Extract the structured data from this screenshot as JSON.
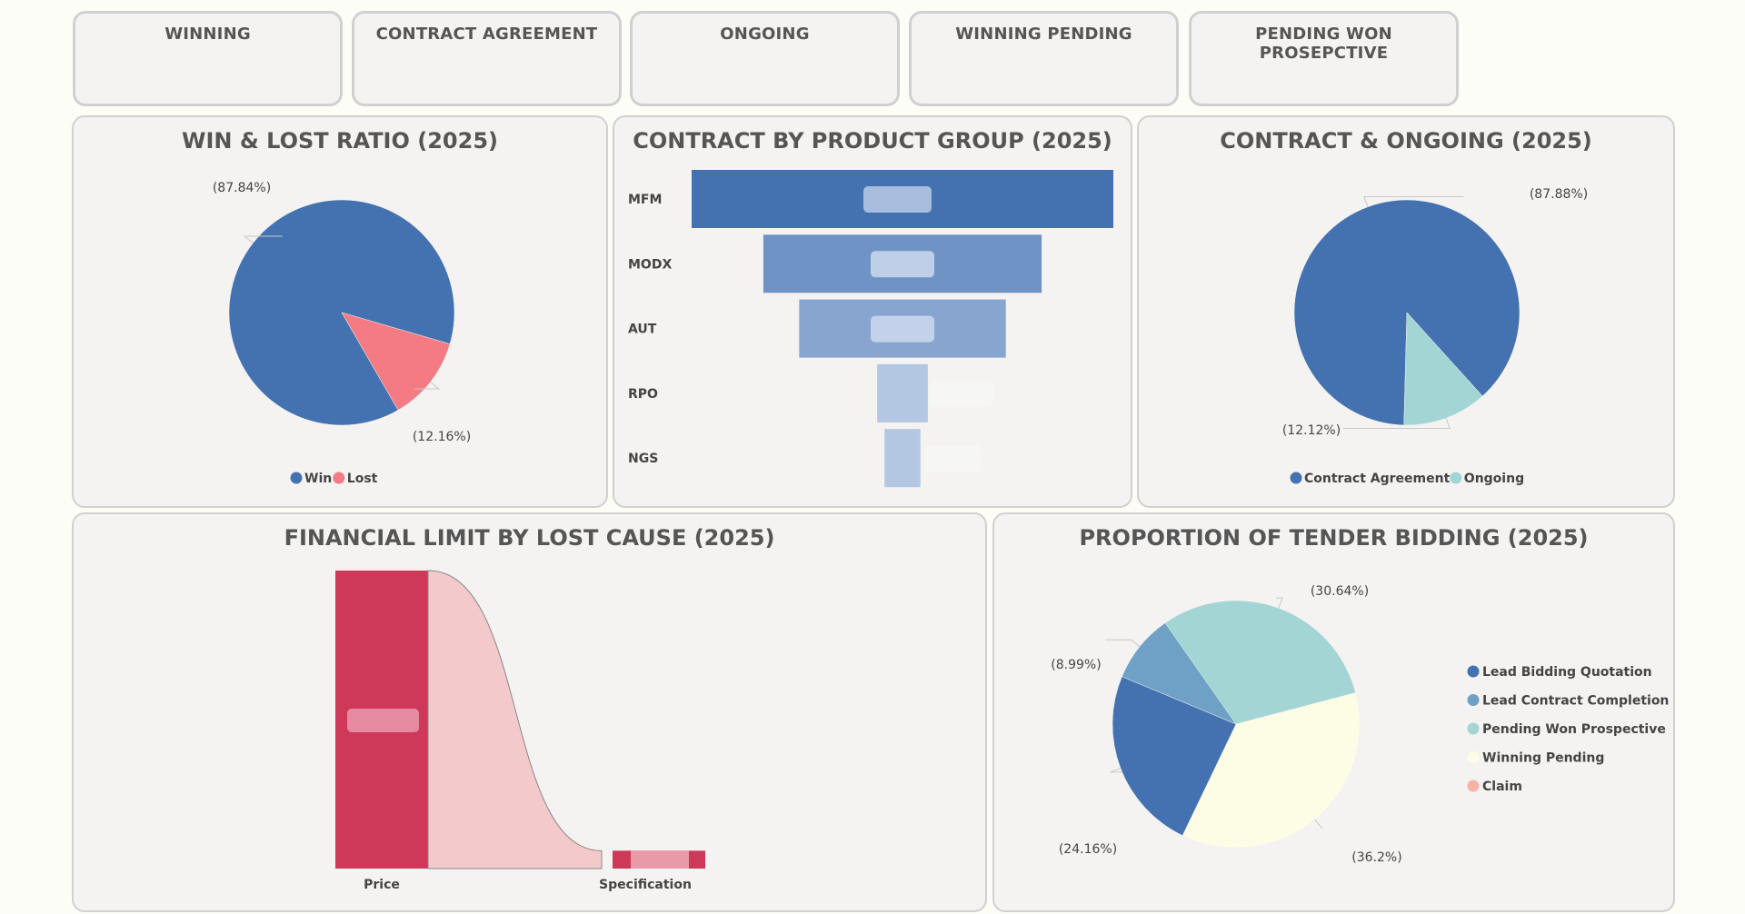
{
  "kpis": [
    {
      "label": "WINNING"
    },
    {
      "label": "CONTRACT AGREEMENT"
    },
    {
      "label": "ONGOING"
    },
    {
      "label": "WINNING PENDING"
    },
    {
      "label": "PENDING WON PROSEPCTIVE"
    }
  ],
  "colors": {
    "blue": "#4472b0",
    "pink": "#f47a84",
    "teal": "#a3d5d4",
    "steel": "#6fa1c6",
    "cream": "#fdfde6",
    "salmon": "#f7b3a8",
    "crimson": "#cf3959",
    "rose": "#f4c9cc"
  },
  "chart_data": [
    {
      "id": "win_lost",
      "type": "pie",
      "title": "WIN & LOST RATIO (2025)",
      "slices": [
        {
          "name": "Win",
          "value": 87.84,
          "label": "(87.84%)",
          "color": "#4472b0"
        },
        {
          "name": "Lost",
          "value": 12.16,
          "label": "(12.16%)",
          "color": "#f47a84"
        }
      ],
      "legend": [
        "Win",
        "Lost"
      ],
      "legend_position": "bottom"
    },
    {
      "id": "product_group",
      "type": "bar",
      "subtype": "funnel",
      "title": "CONTRACT BY PRODUCT GROUP (2025)",
      "categories": [
        "MFM",
        "MODX",
        "AUT",
        "RPO",
        "NGS"
      ],
      "values": [
        100,
        66,
        49,
        12,
        8.5
      ],
      "colors": [
        "#4472b0",
        "#7093c5",
        "#88a5cf",
        "#b3c6e2",
        "#b3c6e2"
      ]
    },
    {
      "id": "contract_ongoing",
      "type": "pie",
      "title": "CONTRACT & ONGOING (2025)",
      "slices": [
        {
          "name": "Contract Agreement",
          "value": 87.88,
          "label": "(87.88%)",
          "color": "#4472b0"
        },
        {
          "name": "Ongoing",
          "value": 12.12,
          "label": "(12.12%)",
          "color": "#a3d5d4"
        }
      ],
      "legend": [
        "Contract Agreement",
        "Ongoing"
      ],
      "legend_position": "bottom"
    },
    {
      "id": "lost_cause",
      "type": "area",
      "subtype": "ribbon",
      "title": "FINANCIAL LIMIT BY LOST CAUSE (2025)",
      "categories": [
        "Price",
        "Specification"
      ],
      "values": [
        100,
        6
      ]
    },
    {
      "id": "tender_bidding",
      "type": "pie",
      "title": "PROPORTION OF TENDER BIDDING (2025)",
      "slices": [
        {
          "name": "Pending Won Prospective",
          "value": 30.64,
          "label": "(30.64%)",
          "color": "#a3d5d4"
        },
        {
          "name": "Winning Pending",
          "value": 36.2,
          "label": "(36.2%)",
          "color": "#fdfde6"
        },
        {
          "name": "Lead Bidding Quotation",
          "value": 24.16,
          "label": "(24.16%)",
          "color": "#4472b0"
        },
        {
          "name": "Lead Contract Completion",
          "value": 8.99,
          "label": "(8.99%)",
          "color": "#6fa1c6"
        }
      ],
      "legend": [
        {
          "name": "Lead Bidding Quotation",
          "color": "#4472b0"
        },
        {
          "name": "Lead Contract Completion",
          "color": "#6fa1c6"
        },
        {
          "name": "Pending Won Prospective",
          "color": "#a3d5d4"
        },
        {
          "name": "Winning Pending",
          "color": "#fdfde6"
        },
        {
          "name": "Claim",
          "color": "#f7b3a8"
        }
      ],
      "legend_position": "right"
    }
  ]
}
